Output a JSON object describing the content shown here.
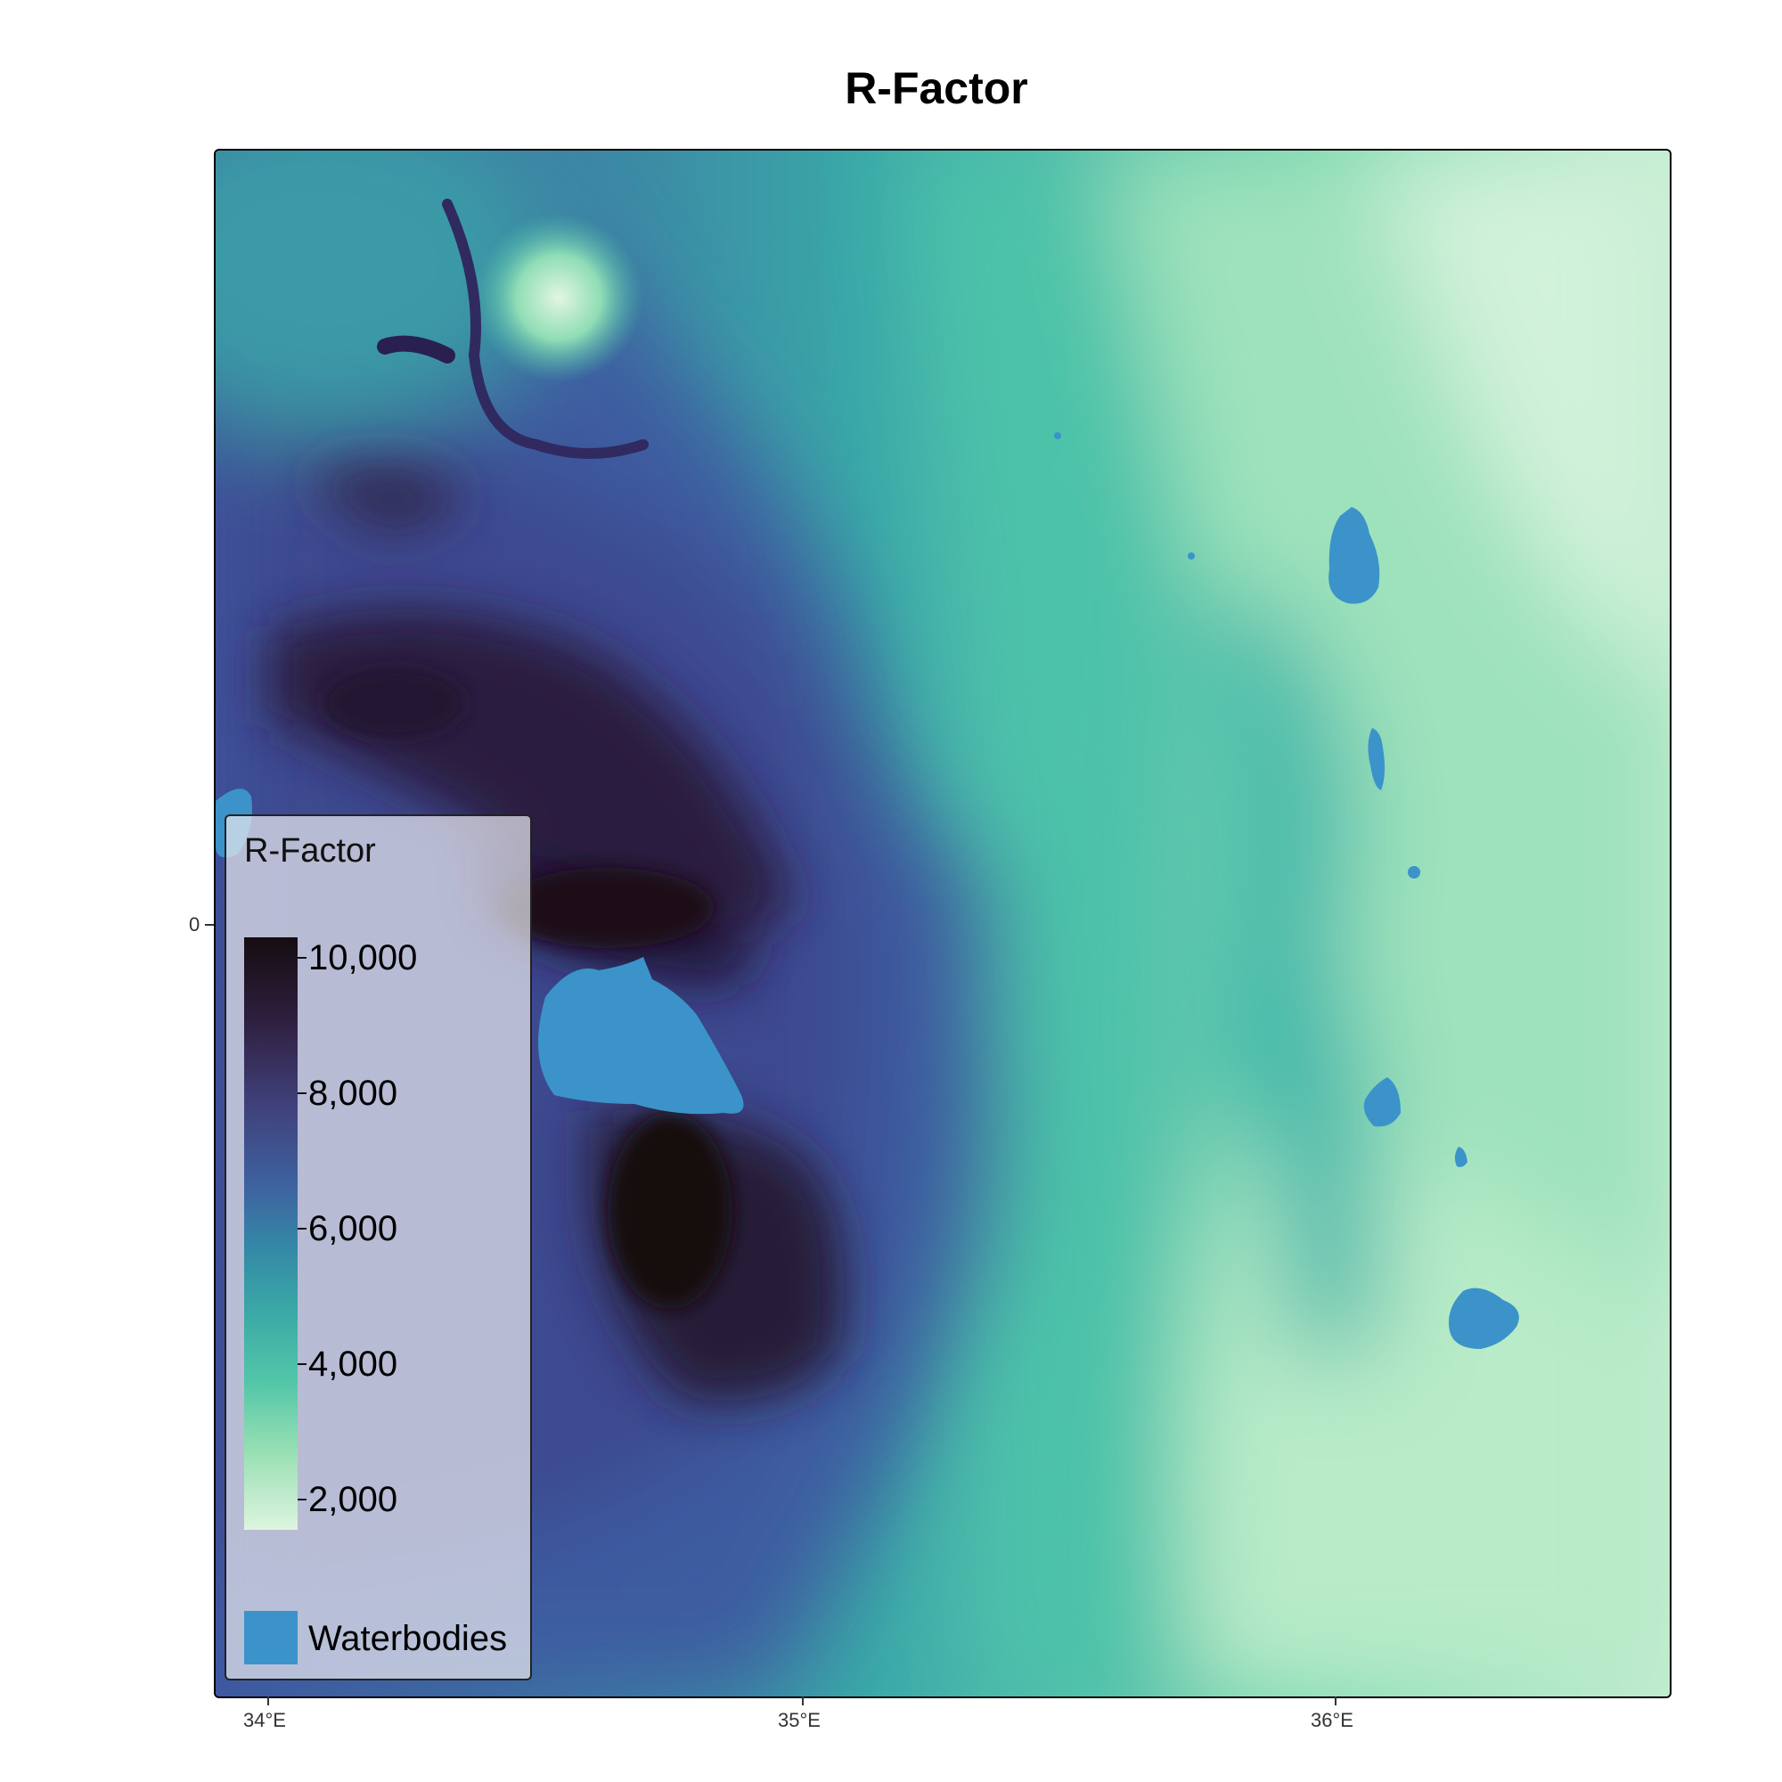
{
  "title": "R-Factor",
  "axes": {
    "x_ticks": [
      "34°E",
      "35°E",
      "36°E"
    ],
    "y_ticks": [
      "0"
    ]
  },
  "legend": {
    "title": "R-Factor",
    "scale_labels": [
      "10,000",
      "8,000",
      "6,000",
      "4,000",
      "2,000"
    ],
    "waterbodies_label": "Waterbodies",
    "waterbodies_color": "#3b93c9"
  },
  "palette": {
    "low": "#def4df",
    "mid": "#3487a6",
    "high": "#150d11"
  }
}
